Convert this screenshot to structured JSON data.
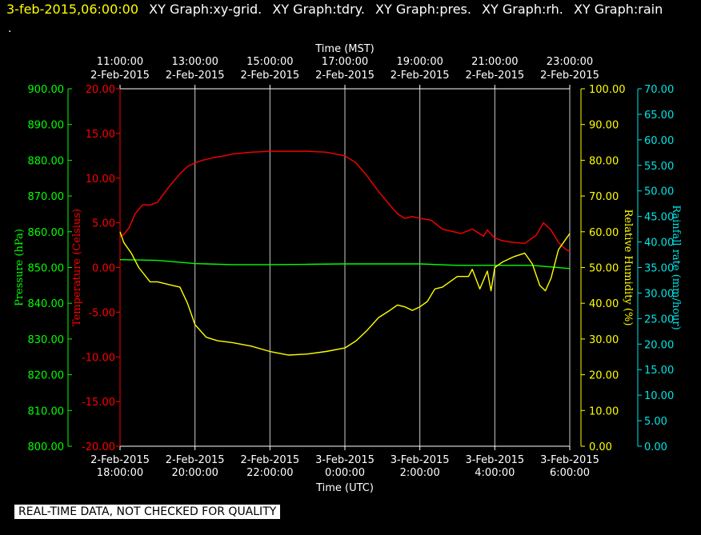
{
  "header": {
    "timestamp": "3-feb-2015,06:00:00",
    "graphs": [
      "XY Graph:xy-grid.",
      "XY Graph:tdry.",
      "XY Graph:pres.",
      "XY Graph:rh.",
      "XY Graph:rain"
    ],
    "dot": "."
  },
  "footer_note": "REAL-TIME DATA, NOT CHECKED FOR QUALITY",
  "chart_data": {
    "type": "line",
    "top_axis": {
      "title": "Time (MST)",
      "ticks": [
        {
          "time": "11:00:00",
          "date": "2-Feb-2015"
        },
        {
          "time": "13:00:00",
          "date": "2-Feb-2015"
        },
        {
          "time": "15:00:00",
          "date": "2-Feb-2015"
        },
        {
          "time": "17:00:00",
          "date": "2-Feb-2015"
        },
        {
          "time": "19:00:00",
          "date": "2-Feb-2015"
        },
        {
          "time": "21:00:00",
          "date": "2-Feb-2015"
        },
        {
          "time": "23:00:00",
          "date": "2-Feb-2015"
        }
      ]
    },
    "bottom_axis": {
      "title": "Time (UTC)",
      "range_hours_utc": [
        18.0,
        30.0
      ],
      "ticks": [
        {
          "date": "2-Feb-2015",
          "time": "18:00:00",
          "hour": 18
        },
        {
          "date": "2-Feb-2015",
          "time": "20:00:00",
          "hour": 20
        },
        {
          "date": "2-Feb-2015",
          "time": "22:00:00",
          "hour": 22
        },
        {
          "date": "3-Feb-2015",
          "time": "0:00:00",
          "hour": 24
        },
        {
          "date": "3-Feb-2015",
          "time": "2:00:00",
          "hour": 26
        },
        {
          "date": "3-Feb-2015",
          "time": "4:00:00",
          "hour": 28
        },
        {
          "date": "3-Feb-2015",
          "time": "6:00:00",
          "hour": 30
        }
      ]
    },
    "axes": {
      "pressure": {
        "label": "Pressure (hPa)",
        "color": "#00ff00",
        "ylim": [
          800,
          900
        ],
        "ticks": [
          "800.00",
          "810.00",
          "820.00",
          "830.00",
          "840.00",
          "850.00",
          "860.00",
          "870.00",
          "880.00",
          "890.00",
          "900.00"
        ]
      },
      "temperature": {
        "label": "Temperature (Celsius)",
        "color": "#ff0000",
        "ylim": [
          -20,
          20
        ],
        "ticks": [
          "-20.00",
          "-15.00",
          "-10.00",
          "-5.00",
          "0.00",
          "5.00",
          "10.00",
          "15.00",
          "20.00"
        ]
      },
      "humidity": {
        "label": "Relative Humidity (%)",
        "color": "#ffff00",
        "ylim": [
          0,
          100
        ],
        "ticks": [
          "0.00",
          "10.00",
          "20.00",
          "30.00",
          "40.00",
          "50.00",
          "60.00",
          "70.00",
          "80.00",
          "90.00",
          "100.00"
        ]
      },
      "rainfall": {
        "label": "Rainfall rate (mm/hour)",
        "color": "#00e5e5",
        "ylim": [
          0,
          70
        ],
        "ticks": [
          "0.00",
          "5.00",
          "10.00",
          "15.00",
          "20.00",
          "25.00",
          "30.00",
          "35.00",
          "40.00",
          "45.00",
          "50.00",
          "55.00",
          "60.00",
          "65.00",
          "70.00"
        ]
      }
    },
    "series": [
      {
        "axis": "temperature",
        "color": "#ff0000",
        "x": [
          18.0,
          18.1,
          18.25,
          18.4,
          18.6,
          18.8,
          19.0,
          19.3,
          19.6,
          19.8,
          20.0,
          20.2,
          20.5,
          20.8,
          21.0,
          21.5,
          22.0,
          22.5,
          23.0,
          23.5,
          24.0,
          24.3,
          24.6,
          24.9,
          25.2,
          25.4,
          25.6,
          25.8,
          26.0,
          26.3,
          26.6,
          26.9,
          27.1,
          27.4,
          27.7,
          27.8,
          28.0,
          28.2,
          28.5,
          28.8,
          29.1,
          29.3,
          29.5,
          29.7,
          29.9,
          30.0
        ],
        "values": [
          3.5,
          3.7,
          4.5,
          6.0,
          7.0,
          7.0,
          7.3,
          9.0,
          10.5,
          11.3,
          11.7,
          12.0,
          12.3,
          12.5,
          12.7,
          12.9,
          13.0,
          13.0,
          13.0,
          12.9,
          12.5,
          11.7,
          10.2,
          8.5,
          7.0,
          6.0,
          5.5,
          5.7,
          5.5,
          5.3,
          4.3,
          4.0,
          3.8,
          4.3,
          3.5,
          4.2,
          3.3,
          3.0,
          2.8,
          2.7,
          3.6,
          5.0,
          4.2,
          2.8,
          2.0,
          1.8
        ]
      },
      {
        "axis": "pressure",
        "color": "#00ff00",
        "x": [
          18.0,
          19.0,
          20.0,
          21.0,
          22.0,
          23.0,
          24.0,
          25.0,
          26.0,
          27.0,
          28.0,
          29.0,
          30.0
        ],
        "values": [
          852.2,
          852.0,
          851.1,
          850.8,
          850.8,
          850.9,
          851.0,
          851.0,
          851.0,
          850.6,
          850.6,
          850.6,
          849.7
        ]
      },
      {
        "axis": "humidity",
        "color": "#ffff00",
        "x": [
          18.0,
          18.1,
          18.3,
          18.5,
          18.8,
          19.0,
          19.4,
          19.6,
          19.8,
          20.0,
          20.3,
          20.6,
          21.0,
          21.5,
          22.0,
          22.5,
          23.0,
          23.5,
          24.0,
          24.3,
          24.6,
          24.9,
          25.2,
          25.4,
          25.6,
          25.8,
          26.0,
          26.2,
          26.4,
          26.6,
          26.8,
          27.0,
          27.3,
          27.4,
          27.6,
          27.8,
          27.9,
          28.0,
          28.2,
          28.5,
          28.8,
          29.0,
          29.2,
          29.35,
          29.5,
          29.7,
          29.9,
          30.0
        ],
        "values": [
          60.0,
          57.0,
          54.0,
          50.0,
          46.0,
          46.0,
          45.0,
          44.5,
          40.0,
          34.0,
          30.5,
          29.5,
          29.0,
          28.0,
          26.5,
          25.5,
          25.8,
          26.5,
          27.5,
          29.5,
          32.5,
          36.0,
          38.0,
          39.5,
          39.0,
          38.0,
          39.0,
          40.5,
          44.0,
          44.5,
          46.0,
          47.5,
          47.5,
          49.5,
          44.0,
          49.0,
          43.5,
          50.0,
          51.5,
          53.0,
          54.0,
          51.0,
          45.0,
          43.5,
          47.0,
          55.0,
          58.0,
          59.5
        ]
      }
    ]
  }
}
